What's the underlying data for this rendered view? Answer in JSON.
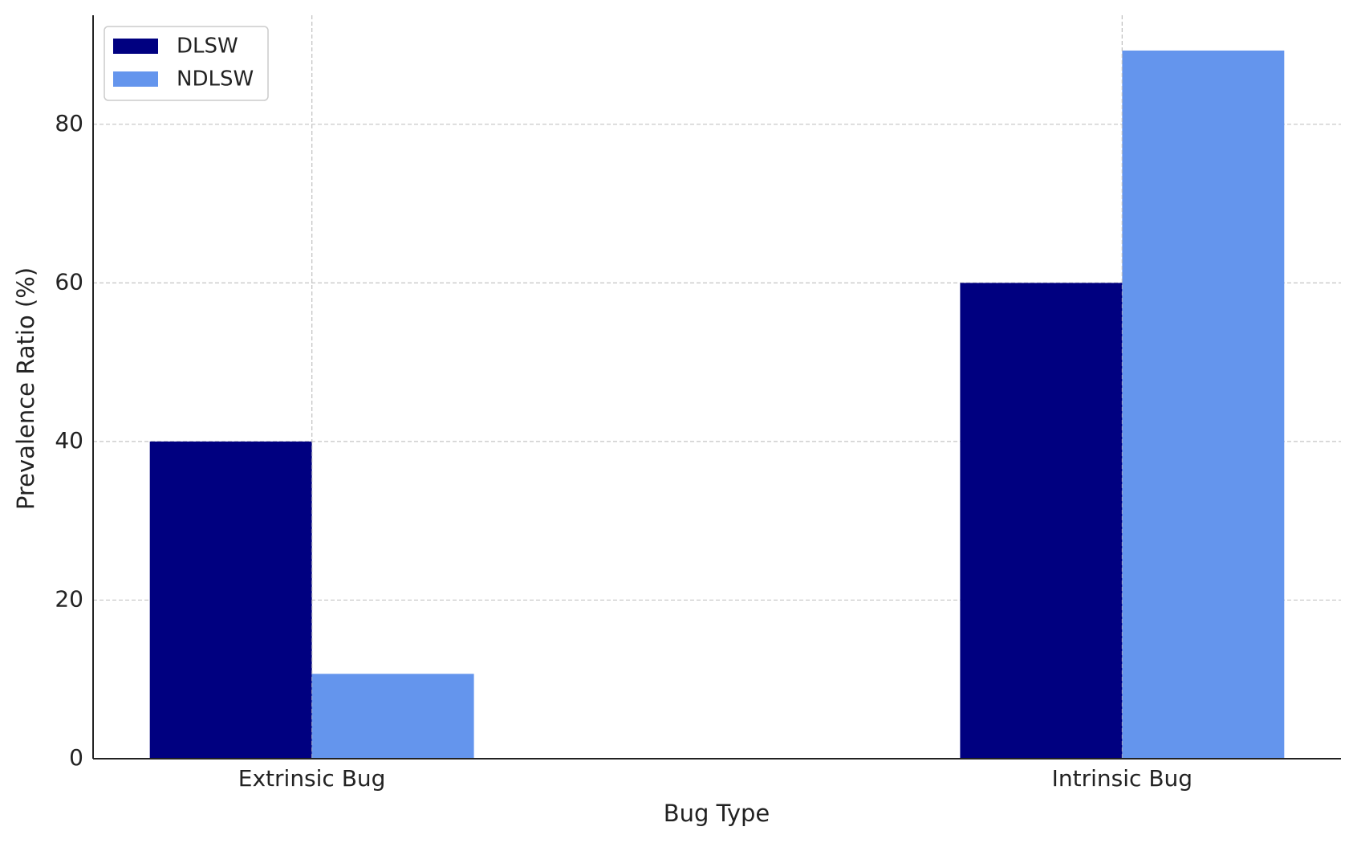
{
  "chart_data": {
    "type": "bar",
    "x_label": "Bug Type",
    "y_label": "Prevalence Ratio (%)",
    "categories": [
      "Extrinsic Bug",
      "Intrinsic Bug"
    ],
    "series": [
      {
        "name": "DLSW",
        "color": "#000080",
        "values": [
          40,
          60
        ]
      },
      {
        "name": "NDLSW",
        "color": "#6495ed",
        "values": [
          10.7,
          89.3
        ]
      }
    ],
    "ylim": [
      0,
      93.75
    ],
    "yticks": [
      0,
      20,
      40,
      60,
      80
    ],
    "grid": true,
    "legend": "upper left"
  }
}
